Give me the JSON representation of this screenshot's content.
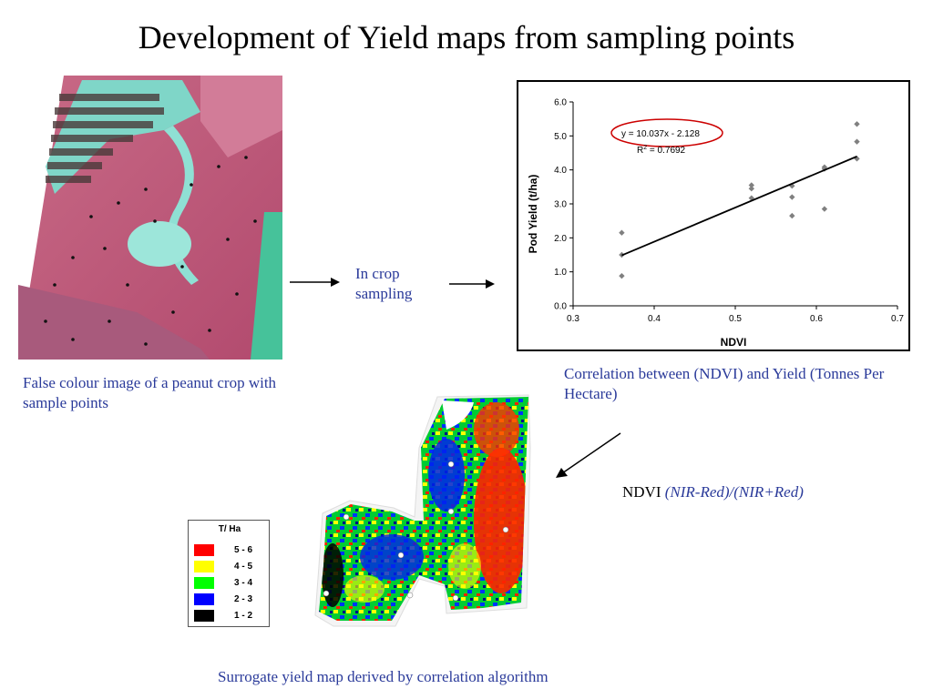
{
  "title": "Development of Yield maps from sampling points",
  "captions": {
    "false_colour": "False colour image of a peanut crop with sample points",
    "in_crop": "In crop sampling",
    "correlation": "Correlation between (NDVI) and Yield (Tonnes Per Hectare)",
    "ndvi_prefix": "NDVI",
    "ndvi_formula": "(NIR-Red)/(NIR+Red)",
    "surrogate": "Surrogate yield map derived by correlation algorithm"
  },
  "legend": {
    "title": "T/ Ha",
    "items": [
      {
        "label": "5 - 6",
        "color": "#ff0000"
      },
      {
        "label": "4 - 5",
        "color": "#ffff00"
      },
      {
        "label": "3 - 4",
        "color": "#00ff00"
      },
      {
        "label": "2 - 3",
        "color": "#0000ff"
      },
      {
        "label": "1 - 2",
        "color": "#000000"
      }
    ]
  },
  "chart_data": {
    "type": "scatter",
    "xlabel": "NDVI",
    "ylabel": "Pod Yield (t/ha)",
    "xlim": [
      0.3,
      0.7
    ],
    "ylim": [
      0.0,
      6.0
    ],
    "xticks": [
      "0.3",
      "0.4",
      "0.5",
      "0.6",
      "0.7"
    ],
    "yticks": [
      "0.0",
      "1.0",
      "2.0",
      "3.0",
      "4.0",
      "5.0",
      "6.0"
    ],
    "points": [
      {
        "x": 0.36,
        "y": 0.88
      },
      {
        "x": 0.36,
        "y": 1.5
      },
      {
        "x": 0.36,
        "y": 2.15
      },
      {
        "x": 0.52,
        "y": 3.17
      },
      {
        "x": 0.52,
        "y": 3.45
      },
      {
        "x": 0.52,
        "y": 3.55
      },
      {
        "x": 0.57,
        "y": 2.65
      },
      {
        "x": 0.57,
        "y": 3.2
      },
      {
        "x": 0.57,
        "y": 3.53
      },
      {
        "x": 0.61,
        "y": 2.85
      },
      {
        "x": 0.61,
        "y": 4.03
      },
      {
        "x": 0.61,
        "y": 4.08
      },
      {
        "x": 0.65,
        "y": 4.33
      },
      {
        "x": 0.65,
        "y": 4.83
      },
      {
        "x": 0.65,
        "y": 5.35
      }
    ],
    "trendline": {
      "slope": 10.037,
      "intercept": -2.128,
      "x_range": [
        0.36,
        0.65
      ]
    },
    "equation": "y = 10.037x - 2.128",
    "r2_label": "R",
    "r2_sup": "2",
    "r2_value": " = 0.7692",
    "point_color": "#808080",
    "highlight_color": "#cc0000"
  }
}
